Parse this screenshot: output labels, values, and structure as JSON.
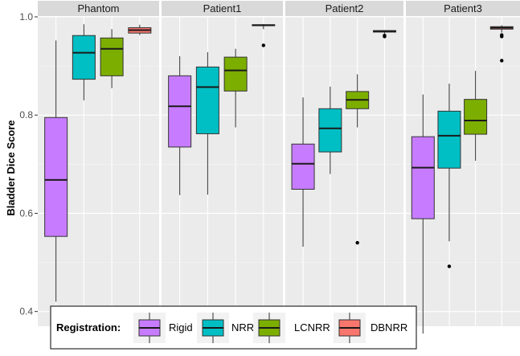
{
  "chart_data": {
    "type": "box",
    "ylabel": "Bladder Dice Score",
    "ylim": [
      0.37,
      1.0
    ],
    "yticks": [
      0.4,
      0.6,
      0.8,
      1.0
    ],
    "ytick_labels": [
      "0.4",
      "0.6",
      "0.8",
      "1.0"
    ],
    "grid": true,
    "legend_position": "bottom-left",
    "legend_title": "Registration:",
    "methods": [
      {
        "name": "Rigid",
        "color": "#C77CFF"
      },
      {
        "name": "NRR",
        "color": "#00BFC4"
      },
      {
        "name": "LCNRR",
        "color": "#7CAE00"
      },
      {
        "name": "DBNRR",
        "color": "#F8766D"
      }
    ],
    "panels": [
      {
        "title": "Phantom",
        "boxes": [
          {
            "method": "Rigid",
            "min": 0.42,
            "q1": 0.553,
            "median": 0.668,
            "q3": 0.795,
            "max": 0.952,
            "outliers": []
          },
          {
            "method": "NRR",
            "min": 0.83,
            "q1": 0.873,
            "median": 0.927,
            "q3": 0.962,
            "max": 0.985,
            "outliers": []
          },
          {
            "method": "LCNRR",
            "min": 0.855,
            "q1": 0.88,
            "median": 0.935,
            "q3": 0.957,
            "max": 0.975,
            "outliers": []
          },
          {
            "method": "DBNRR",
            "min": 0.963,
            "q1": 0.967,
            "median": 0.973,
            "q3": 0.978,
            "max": 0.984,
            "outliers": []
          }
        ]
      },
      {
        "title": "Patient1",
        "boxes": [
          {
            "method": "Rigid",
            "min": 0.637,
            "q1": 0.735,
            "median": 0.818,
            "q3": 0.88,
            "max": 0.92,
            "outliers": []
          },
          {
            "method": "NRR",
            "min": 0.638,
            "q1": 0.762,
            "median": 0.857,
            "q3": 0.898,
            "max": 0.928,
            "outliers": []
          },
          {
            "method": "LCNRR",
            "min": 0.775,
            "q1": 0.849,
            "median": 0.891,
            "q3": 0.918,
            "max": 0.935,
            "outliers": []
          },
          {
            "method": "DBNRR",
            "min": 0.975,
            "q1": 0.982,
            "median": 0.983,
            "q3": 0.984,
            "max": 0.985,
            "outliers": [
              0.942
            ]
          }
        ]
      },
      {
        "title": "Patient2",
        "boxes": [
          {
            "method": "Rigid",
            "min": 0.532,
            "q1": 0.649,
            "median": 0.701,
            "q3": 0.741,
            "max": 0.836,
            "outliers": []
          },
          {
            "method": "NRR",
            "min": 0.68,
            "q1": 0.725,
            "median": 0.773,
            "q3": 0.813,
            "max": 0.858,
            "outliers": []
          },
          {
            "method": "LCNRR",
            "min": 0.775,
            "q1": 0.813,
            "median": 0.831,
            "q3": 0.848,
            "max": 0.883,
            "outliers": [
              0.54
            ]
          },
          {
            "method": "DBNRR",
            "min": 0.966,
            "q1": 0.969,
            "median": 0.971,
            "q3": 0.972,
            "max": 0.973,
            "outliers": [
              0.962,
              0.96
            ]
          }
        ]
      },
      {
        "title": "Patient3",
        "boxes": [
          {
            "method": "Rigid",
            "min": 0.355,
            "q1": 0.589,
            "median": 0.693,
            "q3": 0.756,
            "max": 0.842,
            "outliers": []
          },
          {
            "method": "NRR",
            "min": 0.543,
            "q1": 0.692,
            "median": 0.758,
            "q3": 0.808,
            "max": 0.864,
            "outliers": [
              0.492
            ]
          },
          {
            "method": "LCNRR",
            "min": 0.707,
            "q1": 0.761,
            "median": 0.789,
            "q3": 0.832,
            "max": 0.89,
            "outliers": []
          },
          {
            "method": "DBNRR",
            "min": 0.968,
            "q1": 0.975,
            "median": 0.978,
            "q3": 0.98,
            "max": 0.983,
            "outliers": [
              0.963,
              0.96,
              0.911
            ]
          }
        ]
      }
    ]
  }
}
